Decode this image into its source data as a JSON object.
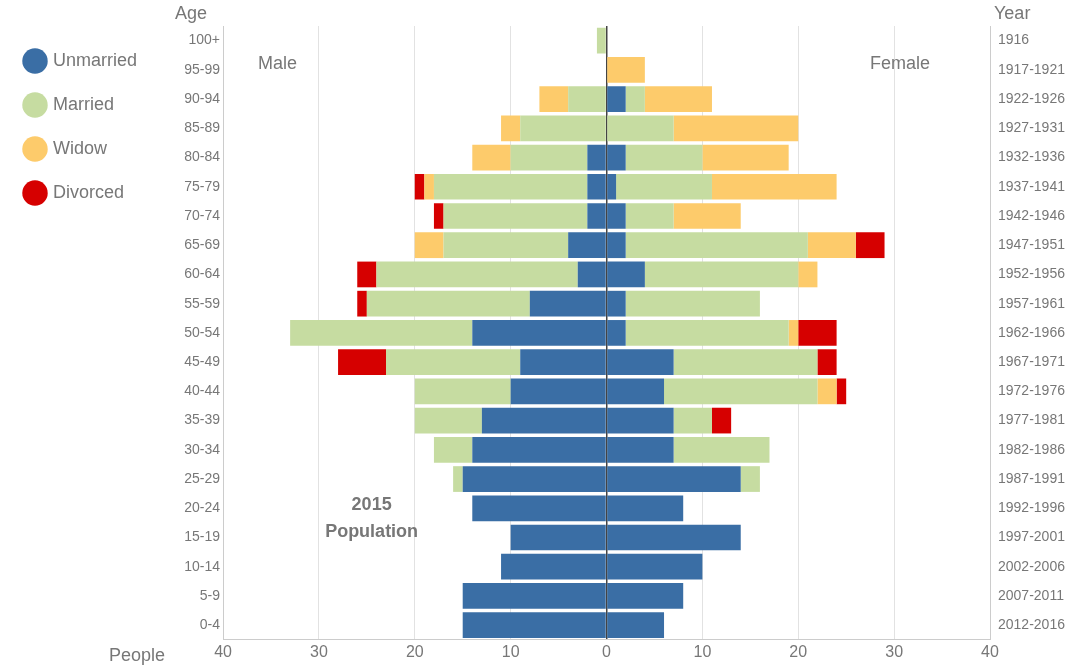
{
  "chart_data": {
    "type": "bar",
    "orientation": "horizontal",
    "stacked": true,
    "ylabel": "Age",
    "y2label": "Year",
    "xlabel": "People",
    "annotations": [
      "Male",
      "Female",
      "2015 Population"
    ],
    "categories": [
      "100+",
      "95-99",
      "90-94",
      "85-89",
      "80-84",
      "75-79",
      "70-74",
      "65-69",
      "60-64",
      "55-59",
      "50-54",
      "45-49",
      "40-44",
      "35-39",
      "30-34",
      "25-29",
      "20-24",
      "15-19",
      "10-14",
      "5-9",
      "0-4"
    ],
    "y2_categories": [
      "1916",
      "1917-1921",
      "1922-1926",
      "1927-1931",
      "1932-1936",
      "1937-1941",
      "1942-1946",
      "1947-1951",
      "1952-1956",
      "1957-1961",
      "1962-1966",
      "1967-1971",
      "1972-1976",
      "1977-1981",
      "1982-1986",
      "1987-1991",
      "1992-1996",
      "1997-2001",
      "2002-2006",
      "2007-2011",
      "2012-2016"
    ],
    "series": [
      {
        "name": "Unmarried",
        "color": "#3a6ea5",
        "values": [
          null,
          null,
          null,
          null,
          -2,
          -2,
          -2,
          -4,
          -3,
          -8,
          -14,
          -9,
          -10,
          -13,
          -14,
          -15,
          -14,
          -10,
          -11,
          -15,
          -15
        ]
      },
      {
        "name": "Married",
        "color": "#c6dca1",
        "values": [
          -1,
          null,
          -4,
          -9,
          -8,
          -16,
          -15,
          -13,
          -21,
          -17,
          -19,
          -14,
          -10,
          -7,
          -4,
          -1,
          null,
          null,
          null,
          null,
          null
        ]
      },
      {
        "name": "Widow",
        "color": "#fdcb6b",
        "values": [
          null,
          null,
          -3,
          -2,
          -4,
          -1,
          null,
          -3,
          null,
          null,
          null,
          null,
          null,
          null,
          null,
          null,
          null,
          null,
          null,
          null,
          null
        ]
      },
      {
        "name": "Divorced",
        "color": "#d60000",
        "values": [
          null,
          null,
          null,
          null,
          null,
          -1,
          -1,
          null,
          -2,
          -1,
          null,
          -5,
          null,
          null,
          null,
          null,
          null,
          null,
          null,
          null,
          null
        ]
      },
      {
        "color": "#3a6ea5",
        "values": [
          null,
          null,
          2,
          null,
          2,
          1,
          2,
          2,
          4,
          2,
          2,
          7,
          6,
          7,
          7,
          14,
          8,
          14,
          10,
          8,
          6
        ]
      },
      {
        "color": "#c6dca1",
        "values": [
          null,
          null,
          2,
          7,
          8,
          10,
          5,
          19,
          16,
          14,
          17,
          15,
          16,
          4,
          10,
          2,
          null,
          null,
          null,
          null,
          null
        ]
      },
      {
        "color": "#fdcb6b",
        "values": [
          null,
          4,
          7,
          13,
          9,
          13,
          7,
          5,
          2,
          null,
          1,
          null,
          2,
          null,
          null,
          null,
          null,
          null,
          null,
          null,
          null
        ]
      },
      {
        "color": "#d60000",
        "values": [
          null,
          null,
          null,
          null,
          null,
          null,
          null,
          3,
          null,
          null,
          4,
          2,
          1,
          2,
          null,
          null,
          null,
          null,
          null,
          null,
          null
        ]
      }
    ],
    "xlim": [
      -40,
      40
    ],
    "xticks": [
      {
        "value": -40,
        "label": "40"
      },
      {
        "value": -30,
        "label": "30"
      },
      {
        "value": -20,
        "label": "20"
      },
      {
        "value": -10,
        "label": "10"
      },
      0,
      10,
      20,
      30,
      40
    ],
    "grid": "x",
    "legend": "left"
  }
}
